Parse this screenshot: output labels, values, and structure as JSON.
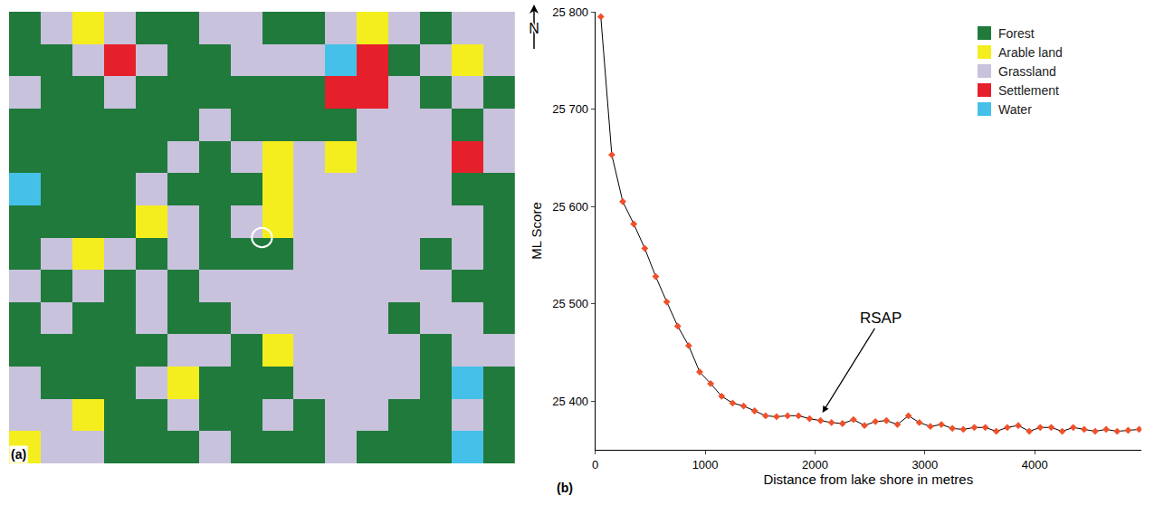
{
  "figure": {
    "panel_labels": [
      "(a)",
      "(b)"
    ],
    "north_label": "N"
  },
  "map": {
    "legend": [
      {
        "name": "Forest",
        "color": "#1f7a3c"
      },
      {
        "name": "Arable land",
        "color": "#f4ee1f"
      },
      {
        "name": "Grassland",
        "color": "#c9c2dd"
      },
      {
        "name": "Settlement",
        "color": "#e6202b"
      },
      {
        "name": "Water",
        "color": "#45c1e9"
      }
    ],
    "cells": [
      [
        0,
        2,
        1,
        2,
        0,
        0,
        2,
        2,
        0,
        0,
        2,
        1,
        2,
        0,
        2,
        2
      ],
      [
        0,
        0,
        2,
        3,
        2,
        0,
        0,
        2,
        2,
        2,
        4,
        3,
        0,
        2,
        1,
        2
      ],
      [
        2,
        0,
        0,
        2,
        0,
        0,
        0,
        0,
        0,
        0,
        3,
        3,
        2,
        0,
        2,
        0
      ],
      [
        0,
        0,
        0,
        0,
        0,
        0,
        2,
        0,
        0,
        0,
        0,
        2,
        2,
        2,
        0,
        2
      ],
      [
        0,
        0,
        0,
        0,
        0,
        2,
        0,
        2,
        1,
        2,
        1,
        2,
        2,
        2,
        3,
        2
      ],
      [
        4,
        0,
        0,
        0,
        2,
        0,
        0,
        0,
        1,
        2,
        2,
        2,
        2,
        2,
        0,
        0
      ],
      [
        0,
        0,
        0,
        0,
        1,
        2,
        0,
        2,
        1,
        2,
        2,
        2,
        2,
        2,
        2,
        0
      ],
      [
        0,
        2,
        1,
        2,
        0,
        2,
        0,
        0,
        0,
        2,
        2,
        2,
        2,
        0,
        2,
        0
      ],
      [
        2,
        0,
        2,
        0,
        2,
        0,
        2,
        2,
        2,
        2,
        2,
        2,
        2,
        2,
        0,
        0
      ],
      [
        0,
        2,
        0,
        0,
        2,
        0,
        0,
        2,
        2,
        2,
        2,
        2,
        0,
        2,
        2,
        0
      ],
      [
        0,
        0,
        0,
        0,
        0,
        2,
        2,
        0,
        1,
        2,
        2,
        2,
        2,
        0,
        2,
        2
      ],
      [
        2,
        0,
        0,
        0,
        2,
        1,
        0,
        0,
        0,
        2,
        2,
        2,
        2,
        0,
        4,
        0
      ],
      [
        2,
        2,
        1,
        0,
        0,
        2,
        0,
        0,
        2,
        0,
        2,
        2,
        0,
        0,
        2,
        0
      ],
      [
        1,
        2,
        2,
        0,
        0,
        0,
        2,
        0,
        0,
        0,
        2,
        0,
        0,
        0,
        4,
        0
      ]
    ]
  },
  "chart_data": {
    "type": "line",
    "x_label": "Distance from lake shore in metres",
    "y_label": "ML Score",
    "x": [
      50,
      150,
      250,
      350,
      450,
      550,
      650,
      750,
      850,
      950,
      1050,
      1150,
      1250,
      1350,
      1450,
      1550,
      1650,
      1750,
      1850,
      1950,
      2050,
      2150,
      2250,
      2350,
      2450,
      2550,
      2650,
      2750,
      2850,
      2950,
      3050,
      3150,
      3250,
      3350,
      3450,
      3550,
      3650,
      3750,
      3850,
      3950,
      4050,
      4150,
      4250,
      4350,
      4450,
      4550,
      4650,
      4750,
      4850,
      4950
    ],
    "values": [
      25795,
      25653,
      25605,
      25582,
      25557,
      25528,
      25502,
      25477,
      25457,
      25430,
      25418,
      25405,
      25398,
      25395,
      25390,
      25385,
      25384,
      25385,
      25385,
      25382,
      25380,
      25378,
      25377,
      25381,
      25375,
      25379,
      25380,
      25376,
      25385,
      25378,
      25374,
      25376,
      25372,
      25371,
      25373,
      25373,
      25369,
      25373,
      25375,
      25369,
      25373,
      25373,
      25369,
      25373,
      25371,
      25369,
      25371,
      25369,
      25370,
      25371
    ],
    "color": "#000000",
    "marker": "#f0502a",
    "xlim": [
      0,
      4970
    ],
    "ylim": [
      25350,
      25800
    ],
    "xticks": [
      0,
      1000,
      2000,
      3000,
      4000
    ],
    "yticks": [
      {
        "value": 25400,
        "label": "25 400"
      },
      {
        "value": 25500,
        "label": "25 500"
      },
      {
        "value": 25600,
        "label": "25 600"
      },
      {
        "value": 25700,
        "label": "25 700"
      },
      {
        "value": 25800,
        "label": "25 800"
      }
    ],
    "grid": false,
    "annotations": [
      {
        "text": "RSAP",
        "x": 2050,
        "y": 25385,
        "text_x": 2600,
        "text_y": 25485
      }
    ]
  }
}
